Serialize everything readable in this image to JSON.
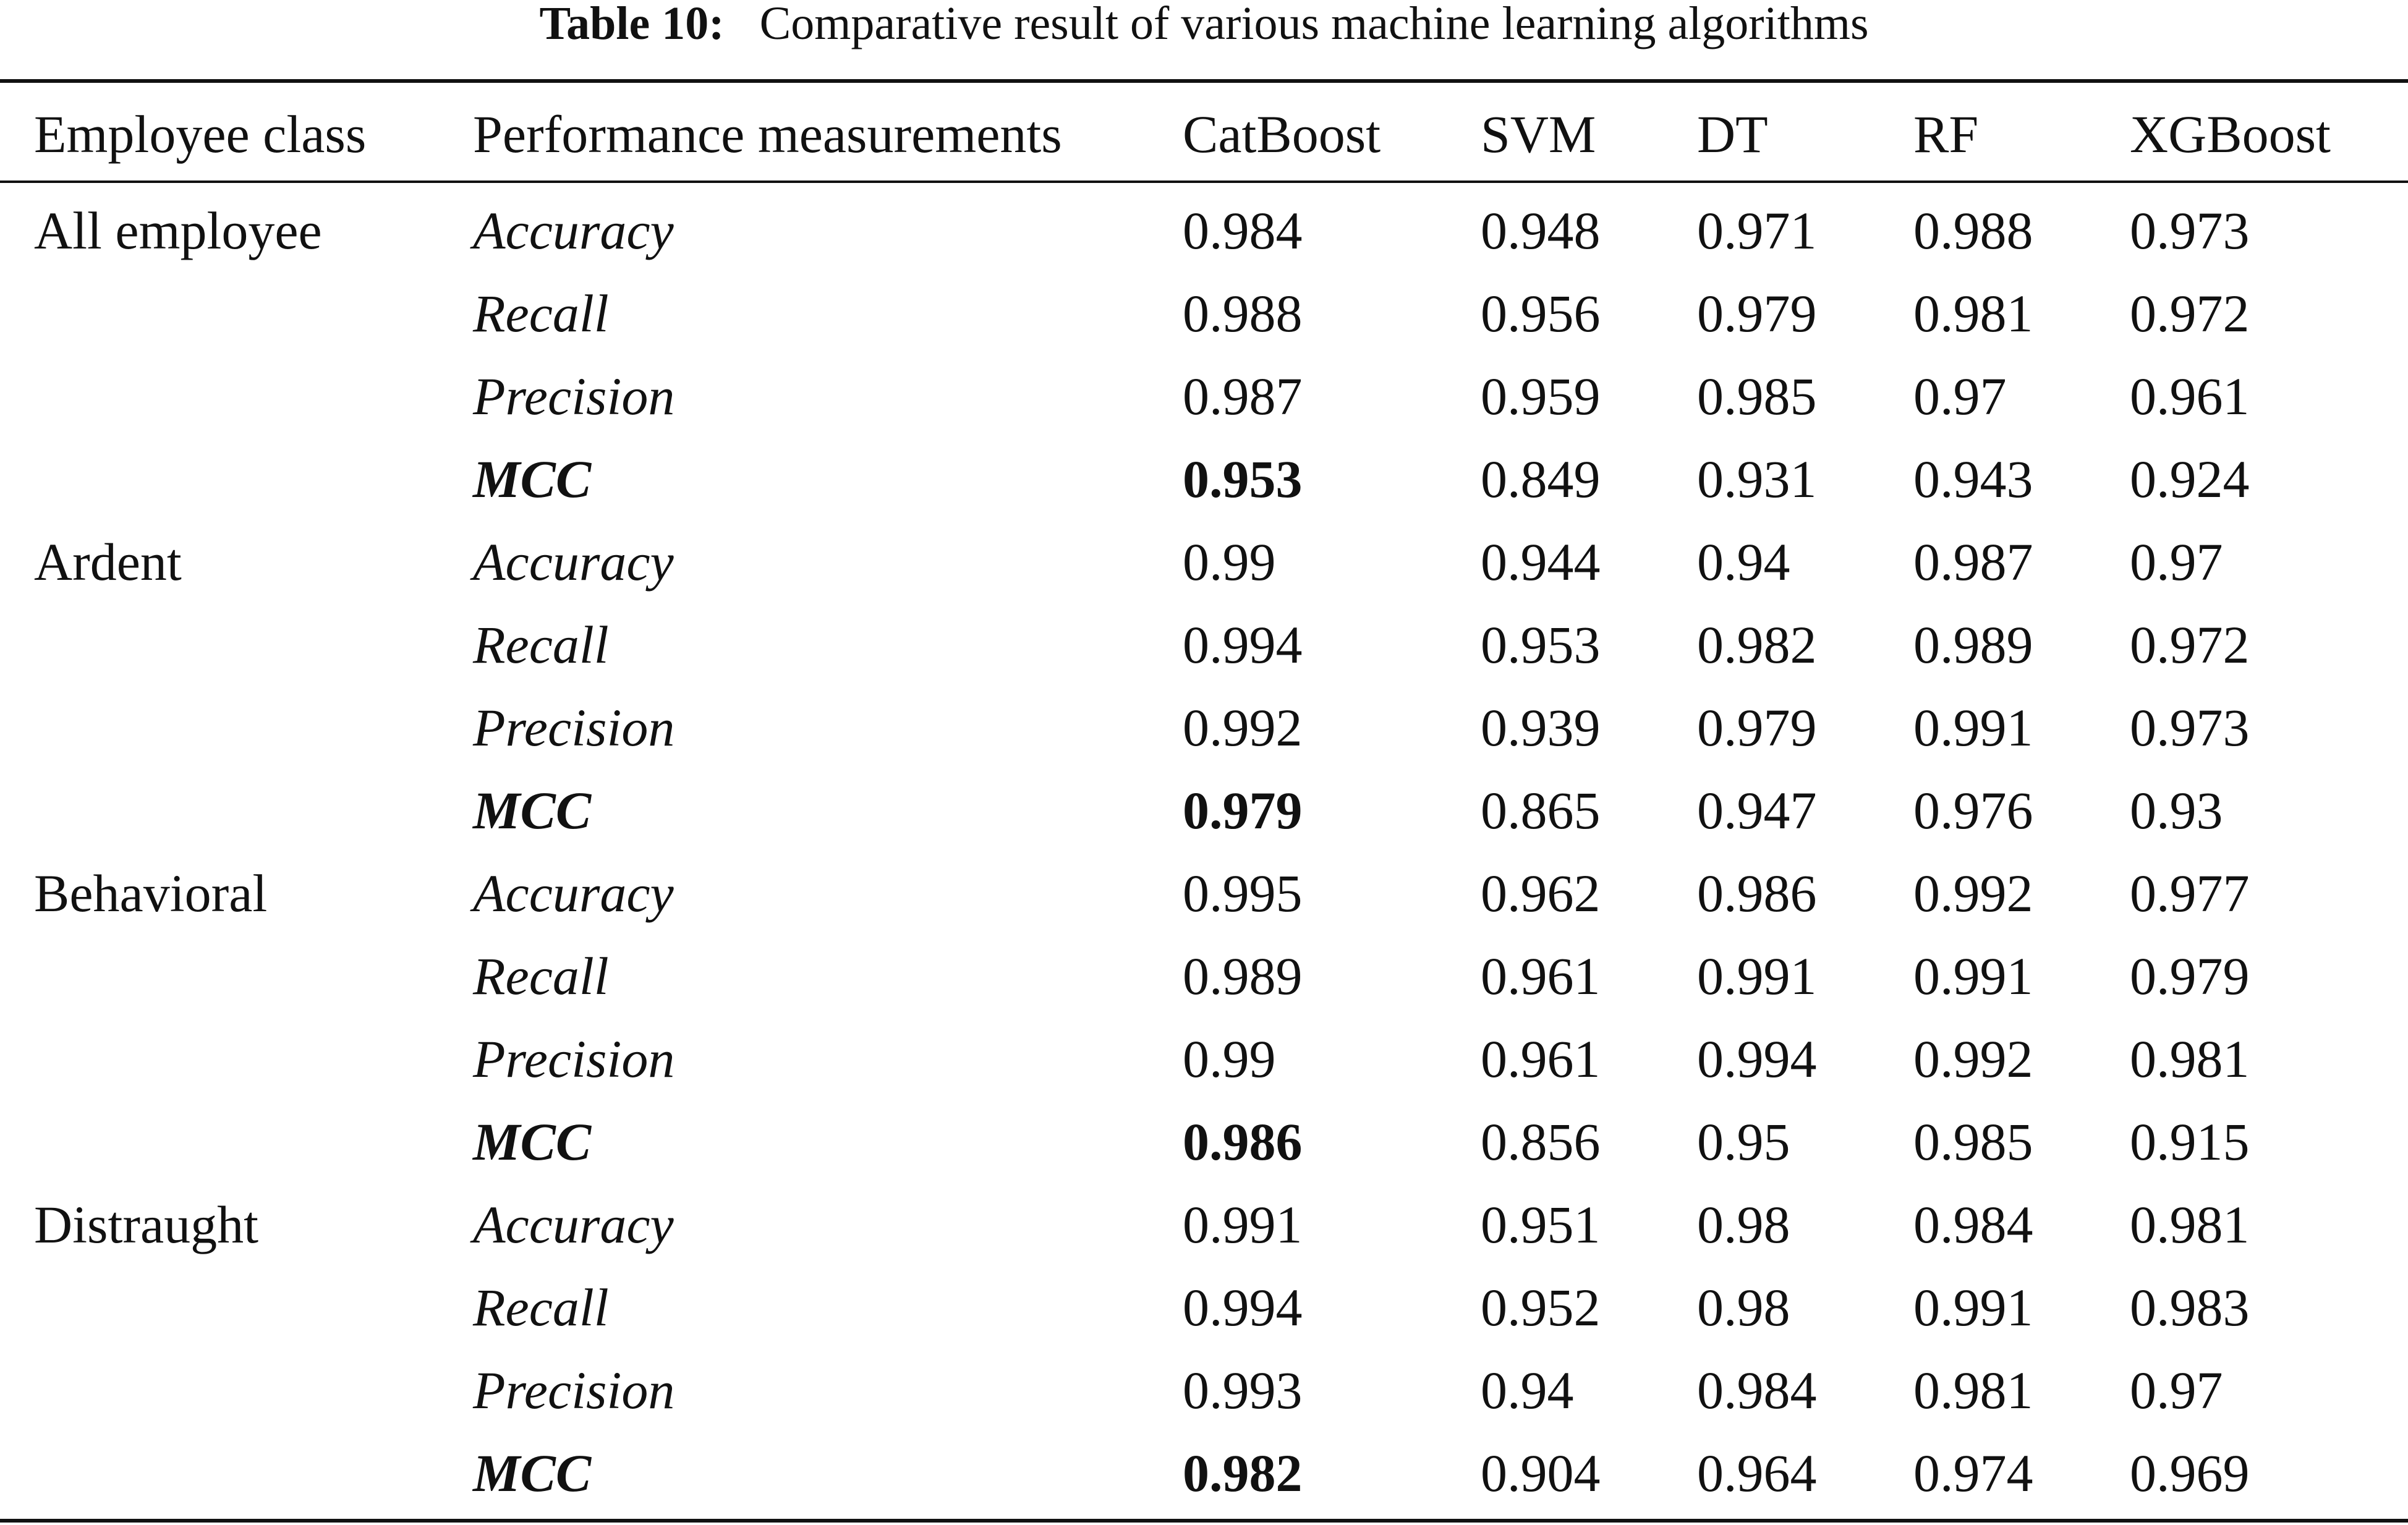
{
  "caption": {
    "label": "Table 10:",
    "text": "Comparative result of various machine learning algorithms"
  },
  "table": {
    "headers": [
      "Employee class",
      "Performance measurements",
      "CatBoost",
      "SVM",
      "DT",
      "RF",
      "XGBoost"
    ],
    "rows": [
      {
        "class": "All employee",
        "metric": "Accuracy",
        "values": [
          "0.984",
          "0.948",
          "0.971",
          "0.988",
          "0.973"
        ]
      },
      {
        "class": "",
        "metric": "Recall",
        "values": [
          "0.988",
          "0.956",
          "0.979",
          "0.981",
          "0.972"
        ]
      },
      {
        "class": "",
        "metric": "Precision",
        "values": [
          "0.987",
          "0.959",
          "0.985",
          "0.97",
          "0.961"
        ]
      },
      {
        "class": "",
        "metric": "MCC",
        "values": [
          "0.953",
          "0.849",
          "0.931",
          "0.943",
          "0.924"
        ]
      },
      {
        "class": "Ardent",
        "metric": "Accuracy",
        "values": [
          "0.99",
          "0.944",
          "0.94",
          "0.987",
          "0.97"
        ]
      },
      {
        "class": "",
        "metric": "Recall",
        "values": [
          "0.994",
          "0.953",
          "0.982",
          "0.989",
          "0.972"
        ]
      },
      {
        "class": "",
        "metric": "Precision",
        "values": [
          "0.992",
          "0.939",
          "0.979",
          "0.991",
          "0.973"
        ]
      },
      {
        "class": "",
        "metric": "MCC",
        "values": [
          "0.979",
          "0.865",
          "0.947",
          "0.976",
          "0.93"
        ]
      },
      {
        "class": "Behavioral",
        "metric": "Accuracy",
        "values": [
          "0.995",
          "0.962",
          "0.986",
          "0.992",
          "0.977"
        ]
      },
      {
        "class": "",
        "metric": "Recall",
        "values": [
          "0.989",
          "0.961",
          "0.991",
          "0.991",
          "0.979"
        ]
      },
      {
        "class": "",
        "metric": "Precision",
        "values": [
          "0.99",
          "0.961",
          "0.994",
          "0.992",
          "0.981"
        ]
      },
      {
        "class": "",
        "metric": "MCC",
        "values": [
          "0.986",
          "0.856",
          "0.95",
          "0.985",
          "0.915"
        ]
      },
      {
        "class": "Distraught",
        "metric": "Accuracy",
        "values": [
          "0.991",
          "0.951",
          "0.98",
          "0.984",
          "0.981"
        ]
      },
      {
        "class": "",
        "metric": "Recall",
        "values": [
          "0.994",
          "0.952",
          "0.98",
          "0.991",
          "0.983"
        ]
      },
      {
        "class": "",
        "metric": "Precision",
        "values": [
          "0.993",
          "0.94",
          "0.984",
          "0.981",
          "0.97"
        ]
      },
      {
        "class": "",
        "metric": "MCC",
        "values": [
          "0.982",
          "0.904",
          "0.964",
          "0.974",
          "0.969"
        ]
      }
    ]
  }
}
